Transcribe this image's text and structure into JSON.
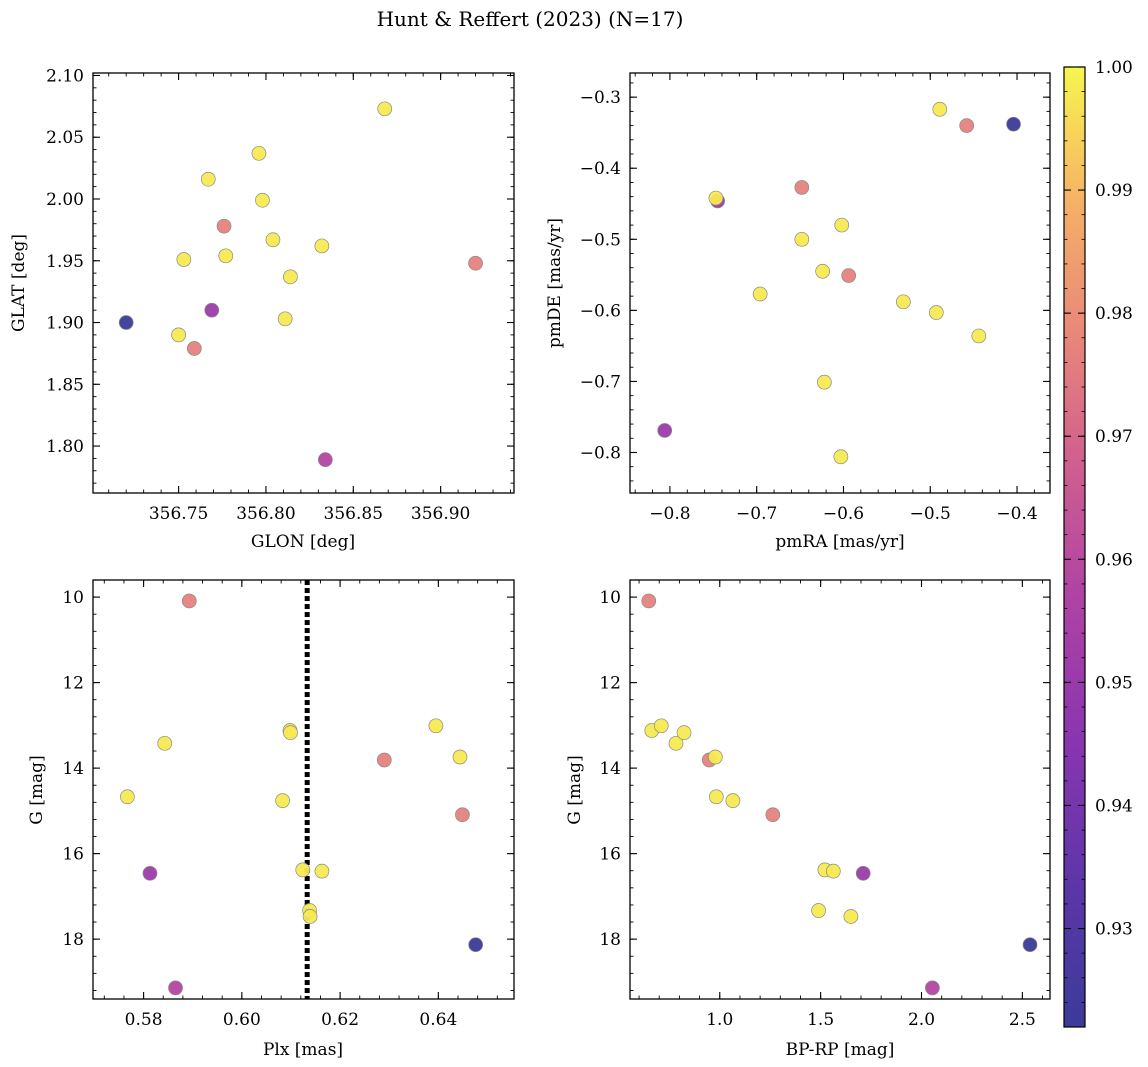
{
  "figure_title": "Hunt & Reffert (2023) (N=17)",
  "colorbar": {
    "vmin": 0.922,
    "vmax": 1.0,
    "ticks": [
      0.93,
      0.94,
      0.95,
      0.96,
      0.97,
      0.98,
      0.99,
      1.0
    ],
    "tick_labels": [
      "0.93",
      "0.94",
      "0.95",
      "0.96",
      "0.97",
      "0.98",
      "0.99",
      "1.00"
    ],
    "colormap": "plasma"
  },
  "chart_data": [
    {
      "type": "scatter",
      "id": "glon-glat",
      "xlabel": "GLON [deg]",
      "ylabel": "GLAT [deg]",
      "xlim": [
        356.701,
        356.942
      ],
      "ylim": [
        1.762,
        2.102
      ],
      "y_inverted": false,
      "xticks": [
        356.75,
        356.8,
        356.85,
        356.9
      ],
      "xtick_labels": [
        "356.75",
        "356.80",
        "356.85",
        "356.90"
      ],
      "yticks": [
        1.8,
        1.85,
        1.9,
        1.95,
        2.0,
        2.05,
        2.1
      ],
      "ytick_labels": [
        "1.80",
        "1.85",
        "1.90",
        "1.95",
        "2.00",
        "2.05",
        "2.10"
      ],
      "points": [
        {
          "x": 356.72,
          "y": 1.9,
          "c": 0.922
        },
        {
          "x": 356.75,
          "y": 1.89,
          "c": 0.998
        },
        {
          "x": 356.753,
          "y": 1.951,
          "c": 0.998
        },
        {
          "x": 356.759,
          "y": 1.879,
          "c": 0.977
        },
        {
          "x": 356.767,
          "y": 2.016,
          "c": 0.998
        },
        {
          "x": 356.769,
          "y": 1.91,
          "c": 0.951
        },
        {
          "x": 356.776,
          "y": 1.978,
          "c": 0.977
        },
        {
          "x": 356.777,
          "y": 1.954,
          "c": 0.998
        },
        {
          "x": 356.796,
          "y": 2.037,
          "c": 0.998
        },
        {
          "x": 356.798,
          "y": 1.999,
          "c": 0.998
        },
        {
          "x": 356.804,
          "y": 1.967,
          "c": 0.998
        },
        {
          "x": 356.811,
          "y": 1.903,
          "c": 0.998
        },
        {
          "x": 356.814,
          "y": 1.937,
          "c": 0.998
        },
        {
          "x": 356.832,
          "y": 1.962,
          "c": 0.998
        },
        {
          "x": 356.834,
          "y": 1.789,
          "c": 0.958
        },
        {
          "x": 356.868,
          "y": 2.073,
          "c": 0.998
        },
        {
          "x": 356.92,
          "y": 1.948,
          "c": 0.977
        }
      ]
    },
    {
      "type": "scatter",
      "id": "pmra-pmde",
      "xlabel": "pmRA [mas/yr]",
      "ylabel": "pmDE [mas/yr]",
      "xlim": [
        -0.846,
        -0.362
      ],
      "ylim": [
        -0.857,
        -0.266
      ],
      "y_inverted": false,
      "xticks": [
        -0.8,
        -0.7,
        -0.6,
        -0.5,
        -0.4
      ],
      "xtick_labels": [
        "−0.8",
        "−0.7",
        "−0.6",
        "−0.5",
        "−0.4"
      ],
      "yticks": [
        -0.8,
        -0.7,
        -0.6,
        -0.5,
        -0.4,
        -0.3
      ],
      "ytick_labels": [
        "−0.8",
        "−0.7",
        "−0.6",
        "−0.5",
        "−0.4",
        "−0.3"
      ],
      "points": [
        {
          "x": -0.806,
          "y": -0.769,
          "c": 0.951
        },
        {
          "x": -0.745,
          "y": -0.446,
          "c": 0.951
        },
        {
          "x": -0.747,
          "y": -0.442,
          "c": 0.998
        },
        {
          "x": -0.696,
          "y": -0.577,
          "c": 0.998
        },
        {
          "x": -0.648,
          "y": -0.427,
          "c": 0.977
        },
        {
          "x": -0.648,
          "y": -0.5,
          "c": 0.998
        },
        {
          "x": -0.624,
          "y": -0.545,
          "c": 0.998
        },
        {
          "x": -0.622,
          "y": -0.701,
          "c": 0.998
        },
        {
          "x": -0.603,
          "y": -0.806,
          "c": 0.998
        },
        {
          "x": -0.602,
          "y": -0.48,
          "c": 0.998
        },
        {
          "x": -0.594,
          "y": -0.551,
          "c": 0.977
        },
        {
          "x": -0.531,
          "y": -0.588,
          "c": 0.998
        },
        {
          "x": -0.493,
          "y": -0.603,
          "c": 0.998
        },
        {
          "x": -0.489,
          "y": -0.317,
          "c": 0.998
        },
        {
          "x": -0.458,
          "y": -0.34,
          "c": 0.977
        },
        {
          "x": -0.444,
          "y": -0.636,
          "c": 0.998
        },
        {
          "x": -0.404,
          "y": -0.338,
          "c": 0.922
        }
      ]
    },
    {
      "type": "scatter",
      "id": "plx-g",
      "xlabel": "Plx [mas]",
      "ylabel": "G [mag]",
      "xlim": [
        0.5697,
        0.6554
      ],
      "ylim": [
        9.6,
        19.4
      ],
      "y_inverted": true,
      "xticks": [
        0.58,
        0.6,
        0.62,
        0.64
      ],
      "xtick_labels": [
        "0.58",
        "0.60",
        "0.62",
        "0.64"
      ],
      "yticks": [
        10,
        12,
        14,
        16,
        18
      ],
      "ytick_labels": [
        "10",
        "12",
        "14",
        "16",
        "18"
      ],
      "vline": {
        "x": 0.6133,
        "style": "dotted",
        "color": "#000000"
      },
      "points": [
        {
          "x": 0.5767,
          "y": 14.67,
          "c": 0.998
        },
        {
          "x": 0.5813,
          "y": 16.46,
          "c": 0.951
        },
        {
          "x": 0.5843,
          "y": 13.42,
          "c": 0.998
        },
        {
          "x": 0.5865,
          "y": 19.14,
          "c": 0.958
        },
        {
          "x": 0.5893,
          "y": 10.09,
          "c": 0.977
        },
        {
          "x": 0.6083,
          "y": 14.76,
          "c": 0.998
        },
        {
          "x": 0.6098,
          "y": 13.12,
          "c": 0.998
        },
        {
          "x": 0.6099,
          "y": 13.17,
          "c": 0.998
        },
        {
          "x": 0.6124,
          "y": 16.38,
          "c": 0.998
        },
        {
          "x": 0.6138,
          "y": 17.33,
          "c": 0.998
        },
        {
          "x": 0.6139,
          "y": 17.47,
          "c": 0.998
        },
        {
          "x": 0.6163,
          "y": 16.41,
          "c": 0.998
        },
        {
          "x": 0.629,
          "y": 13.81,
          "c": 0.977
        },
        {
          "x": 0.6395,
          "y": 13.01,
          "c": 0.998
        },
        {
          "x": 0.6444,
          "y": 13.74,
          "c": 0.998
        },
        {
          "x": 0.6449,
          "y": 15.09,
          "c": 0.977
        },
        {
          "x": 0.6476,
          "y": 18.13,
          "c": 0.922
        }
      ]
    },
    {
      "type": "scatter",
      "id": "bprp-g",
      "xlabel": "BP-RP [mag]",
      "ylabel": "G [mag]",
      "xlim": [
        0.555,
        2.637
      ],
      "ylim": [
        9.6,
        19.4
      ],
      "y_inverted": true,
      "xticks": [
        1.0,
        1.5,
        2.0,
        2.5
      ],
      "xtick_labels": [
        "1.0",
        "1.5",
        "2.0",
        "2.5"
      ],
      "yticks": [
        10,
        12,
        14,
        16,
        18
      ],
      "ytick_labels": [
        "10",
        "12",
        "14",
        "16",
        "18"
      ],
      "points": [
        {
          "x": 0.648,
          "y": 10.09,
          "c": 0.977
        },
        {
          "x": 0.663,
          "y": 13.12,
          "c": 0.998
        },
        {
          "x": 0.71,
          "y": 13.01,
          "c": 0.998
        },
        {
          "x": 0.783,
          "y": 13.42,
          "c": 0.998
        },
        {
          "x": 0.823,
          "y": 13.17,
          "c": 0.998
        },
        {
          "x": 0.948,
          "y": 13.81,
          "c": 0.977
        },
        {
          "x": 0.978,
          "y": 13.74,
          "c": 0.998
        },
        {
          "x": 0.983,
          "y": 14.67,
          "c": 0.998
        },
        {
          "x": 1.065,
          "y": 14.76,
          "c": 0.998
        },
        {
          "x": 1.263,
          "y": 15.09,
          "c": 0.977
        },
        {
          "x": 1.49,
          "y": 17.33,
          "c": 0.998
        },
        {
          "x": 1.521,
          "y": 16.38,
          "c": 0.998
        },
        {
          "x": 1.563,
          "y": 16.41,
          "c": 0.998
        },
        {
          "x": 1.65,
          "y": 17.47,
          "c": 0.998
        },
        {
          "x": 1.711,
          "y": 16.46,
          "c": 0.951
        },
        {
          "x": 2.054,
          "y": 19.14,
          "c": 0.958
        },
        {
          "x": 2.538,
          "y": 18.13,
          "c": 0.922
        }
      ]
    }
  ]
}
